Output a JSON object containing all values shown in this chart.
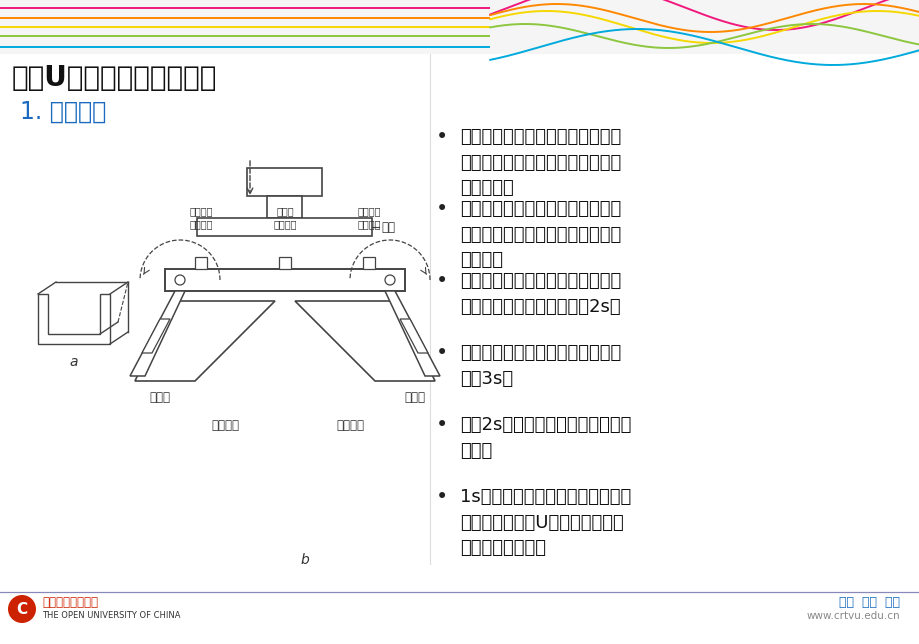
{
  "title1": "一、U形板折板机控制系统",
  "title2": "1. 工作原理",
  "title2_color": "#1a6abf",
  "bg_color": "#f5f5f5",
  "bullet_points": [
    "当模板上移到位，左、右折板返回\n原位时，将裁好的金属板料放在工\n作平台上；",
    "按下启动按钮，模板开始下移，到\n位时压下下限位开关停止下移并压\n紧板料；",
    "左右折板开始上折，上折到位压下\n限位开关停止动作，并保持2s；",
    "设定左右折板折回及模板上移时间\n均为3s；",
    "保压2s后，左右折板先动作，开始\n折回；",
    "1s后，模板开始上移，当都复位停\n止动作时，取下U型板，一块板料\n的加工过程结束。"
  ],
  "footer_right1": "自强  求知  有为",
  "footer_right2": "www.crtvu.edu.cn",
  "footer_right1_color": "#1a6abf",
  "footer_right2_color": "#888888",
  "wave_colors": [
    "#f0197d",
    "#ff8800",
    "#f5d800",
    "#8dc63f",
    "#00aadd"
  ],
  "wave_colors2": [
    "#f0197d",
    "#ff8800",
    "#f5d800",
    "#8dc63f",
    "#00aadd"
  ],
  "title1_fontsize": 20,
  "title2_fontsize": 17,
  "bullet_fontsize": 13,
  "footer_fontsize": 8
}
